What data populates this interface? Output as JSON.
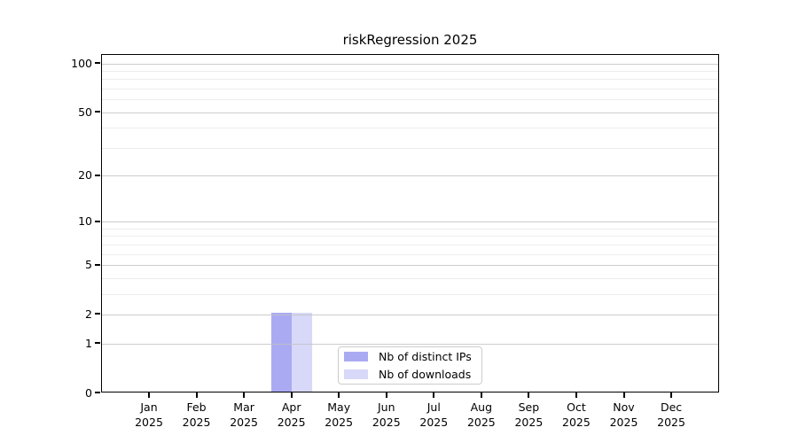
{
  "chart_data": {
    "type": "bar",
    "title": "riskRegression 2025",
    "year": "2025",
    "months": [
      "Jan",
      "Feb",
      "Mar",
      "Apr",
      "May",
      "Jun",
      "Jul",
      "Aug",
      "Sep",
      "Oct",
      "Nov",
      "Dec"
    ],
    "series": [
      {
        "name": "Nb of distinct IPs",
        "color": "#aaaaf3",
        "values": [
          0,
          0,
          0,
          2,
          0,
          0,
          0,
          0,
          0,
          0,
          0,
          0
        ]
      },
      {
        "name": "Nb of downloads",
        "color": "#d8d8f9",
        "values": [
          0,
          0,
          0,
          2,
          0,
          0,
          0,
          0,
          0,
          0,
          0,
          0
        ]
      }
    ],
    "yscale": "log1p",
    "ylim": [
      0,
      113
    ],
    "yticks": [
      0,
      1,
      2,
      5,
      10,
      20,
      50,
      100
    ],
    "yticks_minor": [
      3,
      4,
      6,
      7,
      8,
      9,
      30,
      40,
      60,
      70,
      80,
      90
    ],
    "xlabel": "",
    "ylabel": "",
    "grid": true,
    "legend": {
      "position": "lower-center",
      "labels": [
        "Nb of distinct IPs",
        "Nb of downloads"
      ]
    },
    "colors": {
      "grid_major": "#c3c3c3",
      "grid_minor": "#ededed",
      "spine": "#000000",
      "text": "#000000",
      "legend_border": "#cccccc",
      "background": "#ffffff"
    }
  }
}
